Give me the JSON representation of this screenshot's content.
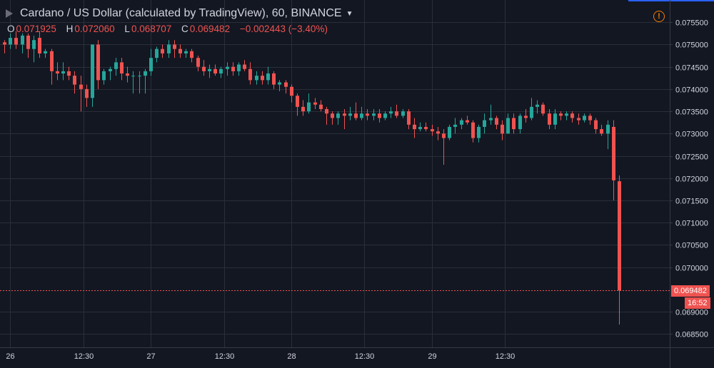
{
  "header": {
    "title": "Cardano / US Dollar (calculated by TradingView), 60, BINANCE",
    "ohlc": {
      "o_label": "O",
      "o_value": "0.071925",
      "h_label": "H",
      "h_value": "0.072060",
      "l_label": "L",
      "l_value": "0.068707",
      "c_label": "C",
      "c_value": "0.069482",
      "change": "−0.002443 (−3.40%)"
    },
    "alert_icon": "warning-icon"
  },
  "last_price_label": "0.069482",
  "countdown_label": "16:52",
  "colors": {
    "background": "#131722",
    "grid": "#2a2e39",
    "text": "#d1d4dc",
    "up": "#26a69a",
    "down": "#ef5350",
    "alert": "#f57c00"
  },
  "chart_data": {
    "type": "candlestick",
    "symbol": "Cardano / US Dollar",
    "interval": "60",
    "exchange": "BINANCE",
    "ylim": [
      0.0682,
      0.076
    ],
    "y_ticks": [
      "0.075500",
      "0.075000",
      "0.074500",
      "0.074000",
      "0.073500",
      "0.073000",
      "0.072500",
      "0.072000",
      "0.071500",
      "0.071000",
      "0.070500",
      "0.070000",
      "0.069000",
      "0.068500"
    ],
    "x_ticks": [
      {
        "label": "26",
        "i": 1
      },
      {
        "label": "12:30",
        "i": 13.5
      },
      {
        "label": "27",
        "i": 25
      },
      {
        "label": "12:30",
        "i": 37.5
      },
      {
        "label": "28",
        "i": 49
      },
      {
        "label": "12:30",
        "i": 61.5
      },
      {
        "label": "29",
        "i": 73
      },
      {
        "label": "12:30",
        "i": 85.5
      }
    ],
    "last_price": 0.069482,
    "candles": [
      {
        "o": 0.07505,
        "h": 0.0751,
        "l": 0.0748,
        "c": 0.075
      },
      {
        "o": 0.075,
        "h": 0.07525,
        "l": 0.0749,
        "c": 0.07515
      },
      {
        "o": 0.07515,
        "h": 0.0753,
        "l": 0.0749,
        "c": 0.075
      },
      {
        "o": 0.075,
        "h": 0.07525,
        "l": 0.0748,
        "c": 0.0752
      },
      {
        "o": 0.0752,
        "h": 0.07525,
        "l": 0.0747,
        "c": 0.0749
      },
      {
        "o": 0.0749,
        "h": 0.0752,
        "l": 0.0746,
        "c": 0.0751
      },
      {
        "o": 0.07515,
        "h": 0.0753,
        "l": 0.0747,
        "c": 0.0748
      },
      {
        "o": 0.0748,
        "h": 0.0749,
        "l": 0.0747,
        "c": 0.07485
      },
      {
        "o": 0.07485,
        "h": 0.0749,
        "l": 0.0741,
        "c": 0.0744
      },
      {
        "o": 0.0744,
        "h": 0.0746,
        "l": 0.0742,
        "c": 0.07435
      },
      {
        "o": 0.07435,
        "h": 0.0746,
        "l": 0.0742,
        "c": 0.0744
      },
      {
        "o": 0.0744,
        "h": 0.0745,
        "l": 0.0742,
        "c": 0.0743
      },
      {
        "o": 0.0743,
        "h": 0.0744,
        "l": 0.0739,
        "c": 0.0741
      },
      {
        "o": 0.0741,
        "h": 0.0743,
        "l": 0.0735,
        "c": 0.074
      },
      {
        "o": 0.074,
        "h": 0.0741,
        "l": 0.0736,
        "c": 0.0738
      },
      {
        "o": 0.0738,
        "h": 0.075,
        "l": 0.0736,
        "c": 0.075
      },
      {
        "o": 0.075,
        "h": 0.0751,
        "l": 0.074,
        "c": 0.0742
      },
      {
        "o": 0.0742,
        "h": 0.07445,
        "l": 0.0741,
        "c": 0.0744
      },
      {
        "o": 0.0744,
        "h": 0.0745,
        "l": 0.0742,
        "c": 0.07445
      },
      {
        "o": 0.07445,
        "h": 0.0747,
        "l": 0.0743,
        "c": 0.0746
      },
      {
        "o": 0.0746,
        "h": 0.0747,
        "l": 0.0742,
        "c": 0.07435
      },
      {
        "o": 0.07435,
        "h": 0.0745,
        "l": 0.07415,
        "c": 0.0743
      },
      {
        "o": 0.0743,
        "h": 0.0744,
        "l": 0.0739,
        "c": 0.0743
      },
      {
        "o": 0.0743,
        "h": 0.0744,
        "l": 0.0739,
        "c": 0.0743
      },
      {
        "o": 0.0743,
        "h": 0.07445,
        "l": 0.0739,
        "c": 0.0744
      },
      {
        "o": 0.0744,
        "h": 0.0749,
        "l": 0.0743,
        "c": 0.0747
      },
      {
        "o": 0.0747,
        "h": 0.07495,
        "l": 0.0746,
        "c": 0.0749
      },
      {
        "o": 0.0749,
        "h": 0.075,
        "l": 0.0747,
        "c": 0.0748
      },
      {
        "o": 0.0748,
        "h": 0.0751,
        "l": 0.0747,
        "c": 0.075
      },
      {
        "o": 0.075,
        "h": 0.0751,
        "l": 0.0747,
        "c": 0.0749
      },
      {
        "o": 0.0749,
        "h": 0.075,
        "l": 0.0747,
        "c": 0.0748
      },
      {
        "o": 0.0748,
        "h": 0.0749,
        "l": 0.0747,
        "c": 0.07485
      },
      {
        "o": 0.07485,
        "h": 0.0749,
        "l": 0.0746,
        "c": 0.0747
      },
      {
        "o": 0.0747,
        "h": 0.07475,
        "l": 0.0744,
        "c": 0.0745
      },
      {
        "o": 0.0745,
        "h": 0.07465,
        "l": 0.0743,
        "c": 0.0744
      },
      {
        "o": 0.0744,
        "h": 0.07455,
        "l": 0.07425,
        "c": 0.07445
      },
      {
        "o": 0.07445,
        "h": 0.07455,
        "l": 0.0743,
        "c": 0.07435
      },
      {
        "o": 0.07435,
        "h": 0.0745,
        "l": 0.07425,
        "c": 0.07445
      },
      {
        "o": 0.07445,
        "h": 0.0746,
        "l": 0.0743,
        "c": 0.0745
      },
      {
        "o": 0.0745,
        "h": 0.0746,
        "l": 0.0743,
        "c": 0.0744
      },
      {
        "o": 0.0744,
        "h": 0.0746,
        "l": 0.0743,
        "c": 0.07455
      },
      {
        "o": 0.07455,
        "h": 0.07465,
        "l": 0.0744,
        "c": 0.07445
      },
      {
        "o": 0.07445,
        "h": 0.0746,
        "l": 0.0741,
        "c": 0.0742
      },
      {
        "o": 0.0742,
        "h": 0.0744,
        "l": 0.0741,
        "c": 0.0743
      },
      {
        "o": 0.0743,
        "h": 0.0744,
        "l": 0.0741,
        "c": 0.0742
      },
      {
        "o": 0.0742,
        "h": 0.0745,
        "l": 0.0741,
        "c": 0.07435
      },
      {
        "o": 0.07435,
        "h": 0.0744,
        "l": 0.074,
        "c": 0.0741
      },
      {
        "o": 0.0741,
        "h": 0.0742,
        "l": 0.07395,
        "c": 0.07415
      },
      {
        "o": 0.07415,
        "h": 0.0742,
        "l": 0.0739,
        "c": 0.07405
      },
      {
        "o": 0.07405,
        "h": 0.0741,
        "l": 0.0737,
        "c": 0.07385
      },
      {
        "o": 0.07385,
        "h": 0.0739,
        "l": 0.0734,
        "c": 0.0736
      },
      {
        "o": 0.0736,
        "h": 0.07375,
        "l": 0.0734,
        "c": 0.0735
      },
      {
        "o": 0.0735,
        "h": 0.0739,
        "l": 0.07345,
        "c": 0.0737
      },
      {
        "o": 0.0737,
        "h": 0.0738,
        "l": 0.07355,
        "c": 0.07365
      },
      {
        "o": 0.07365,
        "h": 0.07375,
        "l": 0.0735,
        "c": 0.07355
      },
      {
        "o": 0.07355,
        "h": 0.0736,
        "l": 0.0732,
        "c": 0.07345
      },
      {
        "o": 0.07345,
        "h": 0.0735,
        "l": 0.0732,
        "c": 0.07335
      },
      {
        "o": 0.07335,
        "h": 0.0735,
        "l": 0.0732,
        "c": 0.07345
      },
      {
        "o": 0.07345,
        "h": 0.07355,
        "l": 0.0731,
        "c": 0.0734
      },
      {
        "o": 0.0734,
        "h": 0.0736,
        "l": 0.0733,
        "c": 0.07345
      },
      {
        "o": 0.07345,
        "h": 0.0737,
        "l": 0.0733,
        "c": 0.07335
      },
      {
        "o": 0.07335,
        "h": 0.0736,
        "l": 0.0733,
        "c": 0.07345
      },
      {
        "o": 0.07345,
        "h": 0.07355,
        "l": 0.0733,
        "c": 0.0734
      },
      {
        "o": 0.0734,
        "h": 0.07355,
        "l": 0.0733,
        "c": 0.07345
      },
      {
        "o": 0.07345,
        "h": 0.07355,
        "l": 0.07325,
        "c": 0.07335
      },
      {
        "o": 0.07335,
        "h": 0.0735,
        "l": 0.0733,
        "c": 0.07345
      },
      {
        "o": 0.07345,
        "h": 0.0736,
        "l": 0.07335,
        "c": 0.0735
      },
      {
        "o": 0.0735,
        "h": 0.07365,
        "l": 0.07335,
        "c": 0.0734
      },
      {
        "o": 0.0734,
        "h": 0.07355,
        "l": 0.07335,
        "c": 0.0735
      },
      {
        "o": 0.0735,
        "h": 0.07355,
        "l": 0.0731,
        "c": 0.0732
      },
      {
        "o": 0.0732,
        "h": 0.07335,
        "l": 0.0729,
        "c": 0.0731
      },
      {
        "o": 0.0731,
        "h": 0.07325,
        "l": 0.07305,
        "c": 0.07315
      },
      {
        "o": 0.07315,
        "h": 0.07325,
        "l": 0.07305,
        "c": 0.0731
      },
      {
        "o": 0.0731,
        "h": 0.0732,
        "l": 0.07295,
        "c": 0.07305
      },
      {
        "o": 0.07305,
        "h": 0.07315,
        "l": 0.07285,
        "c": 0.073
      },
      {
        "o": 0.073,
        "h": 0.0731,
        "l": 0.0723,
        "c": 0.0729
      },
      {
        "o": 0.0729,
        "h": 0.0732,
        "l": 0.07285,
        "c": 0.07315
      },
      {
        "o": 0.07315,
        "h": 0.07335,
        "l": 0.073,
        "c": 0.0732
      },
      {
        "o": 0.0732,
        "h": 0.07335,
        "l": 0.0731,
        "c": 0.0733
      },
      {
        "o": 0.0733,
        "h": 0.0734,
        "l": 0.0732,
        "c": 0.07325
      },
      {
        "o": 0.07325,
        "h": 0.0733,
        "l": 0.0728,
        "c": 0.0729
      },
      {
        "o": 0.0729,
        "h": 0.0732,
        "l": 0.0728,
        "c": 0.07315
      },
      {
        "o": 0.07315,
        "h": 0.07345,
        "l": 0.073,
        "c": 0.0733
      },
      {
        "o": 0.0733,
        "h": 0.07365,
        "l": 0.0732,
        "c": 0.07335
      },
      {
        "o": 0.07335,
        "h": 0.0734,
        "l": 0.0731,
        "c": 0.0732
      },
      {
        "o": 0.0732,
        "h": 0.0733,
        "l": 0.07285,
        "c": 0.073
      },
      {
        "o": 0.073,
        "h": 0.07345,
        "l": 0.073,
        "c": 0.07335
      },
      {
        "o": 0.07335,
        "h": 0.07345,
        "l": 0.073,
        "c": 0.0731
      },
      {
        "o": 0.0731,
        "h": 0.07345,
        "l": 0.073,
        "c": 0.0734
      },
      {
        "o": 0.0734,
        "h": 0.07355,
        "l": 0.07325,
        "c": 0.07335
      },
      {
        "o": 0.07335,
        "h": 0.0738,
        "l": 0.0733,
        "c": 0.0736
      },
      {
        "o": 0.0736,
        "h": 0.07375,
        "l": 0.07345,
        "c": 0.07365
      },
      {
        "o": 0.07365,
        "h": 0.0737,
        "l": 0.0734,
        "c": 0.07345
      },
      {
        "o": 0.07345,
        "h": 0.07355,
        "l": 0.0731,
        "c": 0.0732
      },
      {
        "o": 0.0732,
        "h": 0.07355,
        "l": 0.0731,
        "c": 0.07345
      },
      {
        "o": 0.07345,
        "h": 0.0735,
        "l": 0.0733,
        "c": 0.0734
      },
      {
        "o": 0.0734,
        "h": 0.0735,
        "l": 0.0733,
        "c": 0.07345
      },
      {
        "o": 0.07345,
        "h": 0.0735,
        "l": 0.07325,
        "c": 0.07335
      },
      {
        "o": 0.07335,
        "h": 0.07345,
        "l": 0.0732,
        "c": 0.0733
      },
      {
        "o": 0.0733,
        "h": 0.07345,
        "l": 0.07325,
        "c": 0.0734
      },
      {
        "o": 0.0734,
        "h": 0.07345,
        "l": 0.0732,
        "c": 0.0733
      },
      {
        "o": 0.0733,
        "h": 0.07335,
        "l": 0.073,
        "c": 0.0731
      },
      {
        "o": 0.0731,
        "h": 0.0732,
        "l": 0.07295,
        "c": 0.073
      },
      {
        "o": 0.073,
        "h": 0.0733,
        "l": 0.07265,
        "c": 0.0732
      },
      {
        "o": 0.07315,
        "h": 0.0733,
        "l": 0.0715,
        "c": 0.07195
      },
      {
        "o": 0.07193,
        "h": 0.07206,
        "l": 0.06871,
        "c": 0.06948
      }
    ]
  }
}
